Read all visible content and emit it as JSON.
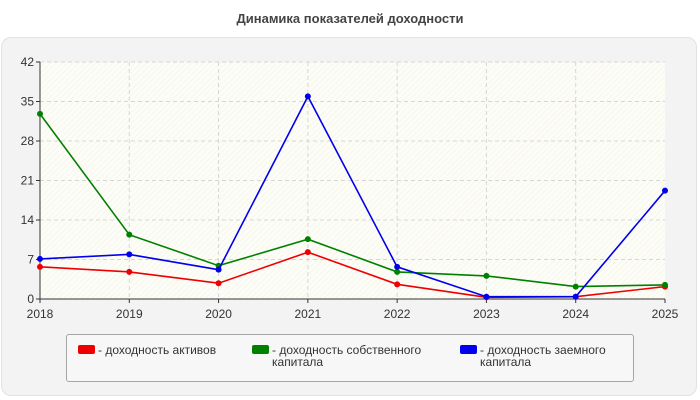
{
  "chart_data": {
    "type": "line",
    "title": "Динамика показателей доходности",
    "xlabel": "",
    "ylabel": "",
    "categories": [
      "2018",
      "2019",
      "2020",
      "2021",
      "2022",
      "2023",
      "2024",
      "2025"
    ],
    "ylim": [
      0,
      42
    ],
    "yticks": [
      "0",
      "7",
      "14",
      "21",
      "28",
      "35",
      "42"
    ],
    "grid": true,
    "legend_position": "bottom",
    "series": [
      {
        "name": "- доходность активов",
        "color": "#ee0000",
        "values": [
          5.7,
          4.8,
          2.8,
          8.3,
          2.6,
          0.3,
          0.4,
          2.2
        ]
      },
      {
        "name": "- доходность собственного капитала",
        "color": "#008000",
        "values": [
          32.8,
          11.4,
          5.9,
          10.6,
          4.8,
          4.1,
          2.2,
          2.5
        ]
      },
      {
        "name": "- доходность заемного капитала",
        "color": "#0000ee",
        "values": [
          7.1,
          7.9,
          5.2,
          35.9,
          5.7,
          0.4,
          0.4,
          19.2
        ]
      }
    ]
  }
}
